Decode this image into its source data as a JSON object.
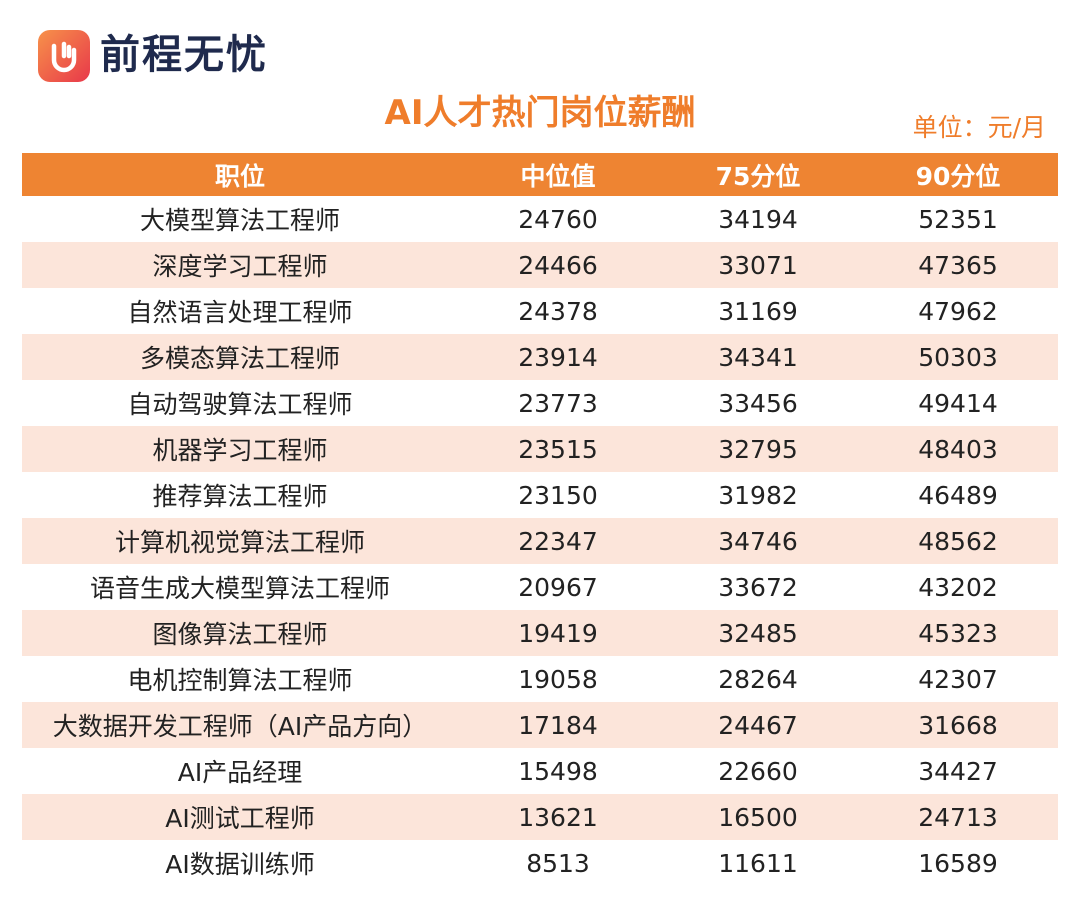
{
  "header": {
    "brand": "前程无忧",
    "title": "AI人才热门岗位薪酬",
    "unit": "单位：元/月"
  },
  "table": {
    "columns": [
      "职位",
      "中位值",
      "75分位",
      "90分位"
    ],
    "rows": [
      [
        "大模型算法工程师",
        24760,
        34194,
        52351
      ],
      [
        "深度学习工程师",
        24466,
        33071,
        47365
      ],
      [
        "自然语言处理工程师",
        24378,
        31169,
        47962
      ],
      [
        "多模态算法工程师",
        23914,
        34341,
        50303
      ],
      [
        "自动驾驶算法工程师",
        23773,
        33456,
        49414
      ],
      [
        "机器学习工程师",
        23515,
        32795,
        48403
      ],
      [
        "推荐算法工程师",
        23150,
        31982,
        46489
      ],
      [
        "计算机视觉算法工程师",
        22347,
        34746,
        48562
      ],
      [
        "语音生成大模型算法工程师",
        20967,
        33672,
        43202
      ],
      [
        "图像算法工程师",
        19419,
        32485,
        45323
      ],
      [
        "电机控制算法工程师",
        19058,
        28264,
        42307
      ],
      [
        "大数据开发工程师（AI产品方向）",
        17184,
        24467,
        31668
      ],
      [
        "AI产品经理",
        15498,
        22660,
        34427
      ],
      [
        "AI测试工程师",
        13621,
        16500,
        24713
      ],
      [
        "AI数据训练师",
        8513,
        11611,
        16589
      ]
    ]
  }
}
